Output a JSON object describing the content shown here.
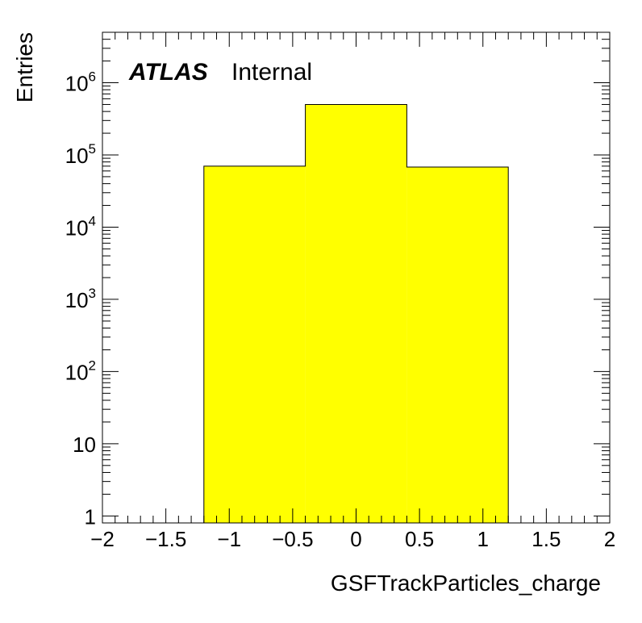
{
  "chart_data": {
    "type": "bar",
    "histogram": true,
    "xlabel": "GSFTrackParticles_charge",
    "ylabel": "Entries",
    "xlim": [
      -2,
      2
    ],
    "ylim": [
      0.8,
      5000000
    ],
    "yscale": "log",
    "bin_edges": [
      -1.2,
      -0.4,
      0.4,
      1.2
    ],
    "values": [
      70000,
      500000,
      68000
    ],
    "fill_color": "#ffff00",
    "line_color": "#000000",
    "x_ticks": [
      {
        "value": -2,
        "label": "−2"
      },
      {
        "value": -1.5,
        "label": "−1.5"
      },
      {
        "value": -1,
        "label": "−1"
      },
      {
        "value": -0.5,
        "label": "−0.5"
      },
      {
        "value": 0,
        "label": "0"
      },
      {
        "value": 0.5,
        "label": "0.5"
      },
      {
        "value": 1,
        "label": "1"
      },
      {
        "value": 1.5,
        "label": "1.5"
      },
      {
        "value": 2,
        "label": "2"
      }
    ],
    "y_ticks": [
      {
        "value": 1,
        "base": "1",
        "exp": ""
      },
      {
        "value": 10,
        "base": "10",
        "exp": ""
      },
      {
        "value": 100,
        "base": "10",
        "exp": "2"
      },
      {
        "value": 1000,
        "base": "10",
        "exp": "3"
      },
      {
        "value": 10000,
        "base": "10",
        "exp": "4"
      },
      {
        "value": 100000,
        "base": "10",
        "exp": "5"
      },
      {
        "value": 1000000,
        "base": "10",
        "exp": "6"
      }
    ],
    "annotation": {
      "bold": "ATLAS",
      "normal": "Internal"
    }
  }
}
